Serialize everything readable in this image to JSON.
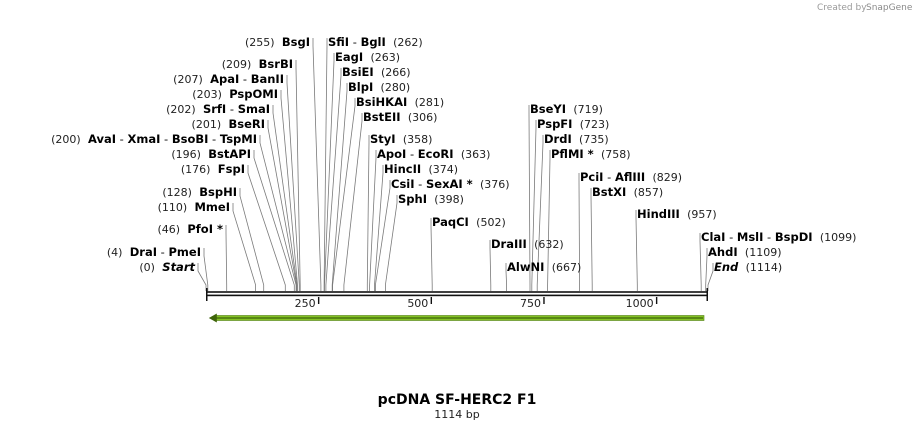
{
  "credit": {
    "prefix": "Created by",
    "brand": "SnapGene"
  },
  "map": {
    "title": "pcDNA SF-HERC2 F1",
    "length_label": "1114 bp",
    "length_bp": 1114,
    "axis_ticks": [
      {
        "bp": 250,
        "label": "250"
      },
      {
        "bp": 500,
        "label": "500"
      },
      {
        "bp": 750,
        "label": "750"
      },
      {
        "bp": 1000,
        "label": "1000"
      }
    ],
    "feature": {
      "start": 4,
      "end": 1114,
      "direction": "reverse",
      "color": "#84c225"
    },
    "sites": [
      {
        "bp": 0,
        "pos": "(0)",
        "parts": [
          "Start"
        ],
        "italic": true
      },
      {
        "bp": 4,
        "pos": "(4)",
        "parts": [
          "DraI",
          "PmeI"
        ]
      },
      {
        "bp": 46,
        "pos": "(46)",
        "parts": [
          "PfoI *"
        ]
      },
      {
        "bp": 110,
        "pos": "(110)",
        "parts": [
          "MmeI"
        ]
      },
      {
        "bp": 128,
        "pos": "(128)",
        "parts": [
          "BspHI"
        ]
      },
      {
        "bp": 176,
        "pos": "(176)",
        "parts": [
          "FspI"
        ]
      },
      {
        "bp": 196,
        "pos": "(196)",
        "parts": [
          "BstAPI"
        ]
      },
      {
        "bp": 200,
        "pos": "(200)",
        "parts": [
          "AvaI",
          "XmaI",
          "BsoBI",
          "TspMI"
        ]
      },
      {
        "bp": 201,
        "pos": "(201)",
        "parts": [
          "BseRI"
        ]
      },
      {
        "bp": 202,
        "pos": "(202)",
        "parts": [
          "SrfI",
          "SmaI"
        ]
      },
      {
        "bp": 203,
        "pos": "(203)",
        "parts": [
          "PspOMI"
        ]
      },
      {
        "bp": 207,
        "pos": "(207)",
        "parts": [
          "ApaI",
          "BanII"
        ]
      },
      {
        "bp": 209,
        "pos": "(209)",
        "parts": [
          "BsrBI"
        ]
      },
      {
        "bp": 255,
        "pos": "(255)",
        "parts": [
          "BsgI"
        ]
      },
      {
        "bp": 262,
        "pos": "(262)",
        "parts": [
          "SfiI",
          "BglI"
        ]
      },
      {
        "bp": 263,
        "pos": "(263)",
        "parts": [
          "EagI"
        ]
      },
      {
        "bp": 266,
        "pos": "(266)",
        "parts": [
          "BsiEI"
        ]
      },
      {
        "bp": 280,
        "pos": "(280)",
        "parts": [
          "BlpI"
        ]
      },
      {
        "bp": 281,
        "pos": "(281)",
        "parts": [
          "BsiHKAI"
        ]
      },
      {
        "bp": 306,
        "pos": "(306)",
        "parts": [
          "BstEII"
        ]
      },
      {
        "bp": 358,
        "pos": "(358)",
        "parts": [
          "StyI"
        ]
      },
      {
        "bp": 363,
        "pos": "(363)",
        "parts": [
          "ApoI",
          "EcoRI"
        ]
      },
      {
        "bp": 374,
        "pos": "(374)",
        "parts": [
          "HincII"
        ]
      },
      {
        "bp": 376,
        "pos": "(376)",
        "parts": [
          "CsiI",
          "SexAI *"
        ]
      },
      {
        "bp": 398,
        "pos": "(398)",
        "parts": [
          "SphI"
        ]
      },
      {
        "bp": 502,
        "pos": "(502)",
        "parts": [
          "PaqCI"
        ]
      },
      {
        "bp": 632,
        "pos": "(632)",
        "parts": [
          "DraIII"
        ]
      },
      {
        "bp": 667,
        "pos": "(667)",
        "parts": [
          "AlwNI"
        ]
      },
      {
        "bp": 719,
        "pos": "(719)",
        "parts": [
          "BseYI"
        ]
      },
      {
        "bp": 723,
        "pos": "(723)",
        "parts": [
          "PspFI"
        ]
      },
      {
        "bp": 735,
        "pos": "(735)",
        "parts": [
          "DrdI"
        ]
      },
      {
        "bp": 758,
        "pos": "(758)",
        "parts": [
          "PflMI *"
        ]
      },
      {
        "bp": 829,
        "pos": "(829)",
        "parts": [
          "PciI",
          "AflIII"
        ]
      },
      {
        "bp": 857,
        "pos": "(857)",
        "parts": [
          "BstXI"
        ]
      },
      {
        "bp": 957,
        "pos": "(957)",
        "parts": [
          "HindIII"
        ]
      },
      {
        "bp": 1099,
        "pos": "(1099)",
        "parts": [
          "ClaI",
          "MslI",
          "BspDI"
        ]
      },
      {
        "bp": 1109,
        "pos": "(1109)",
        "parts": [
          "AhdI"
        ]
      },
      {
        "bp": 1114,
        "pos": "(1114)",
        "parts": [
          "End"
        ],
        "italic": true
      }
    ]
  }
}
